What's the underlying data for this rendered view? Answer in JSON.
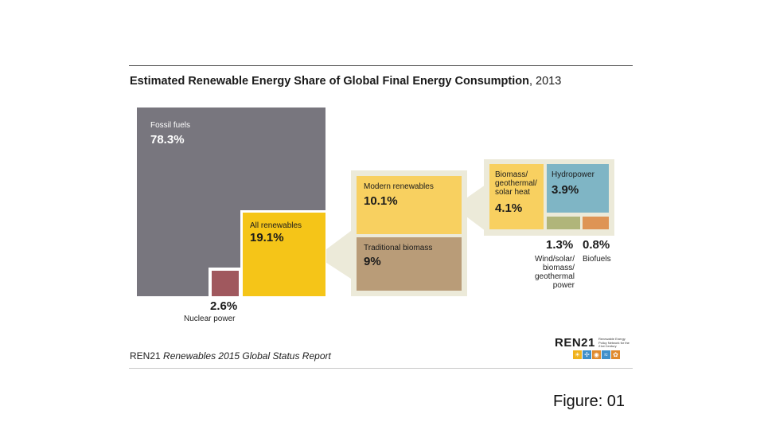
{
  "title": {
    "main": "Estimated Renewable Energy Share of Global Final Energy Consumption",
    "year": ", 2013"
  },
  "chart_data": {
    "type": "treemap",
    "title": "Estimated Renewable Energy Share of Global Final Energy Consumption, 2013",
    "unit": "%",
    "items": [
      {
        "name": "Fossil fuels",
        "value": 78.3,
        "label": "78.3%",
        "color": "#78767e"
      },
      {
        "name": "Nuclear power",
        "value": 2.6,
        "label": "2.6%",
        "color": "#a0585e"
      },
      {
        "name": "All renewables",
        "value": 19.1,
        "label": "19.1%",
        "color": "#f5c518"
      },
      {
        "name": "Modern renewables",
        "value": 10.1,
        "label": "10.1%",
        "color": "#f8d060",
        "parent": "All renewables"
      },
      {
        "name": "Traditional biomass",
        "value": 9,
        "label": "9%",
        "color": "#b99c78",
        "parent": "All renewables"
      },
      {
        "name": "Biomass/ geothermal/ solar heat",
        "value": 4.1,
        "label": "4.1%",
        "color": "#f8d060",
        "parent": "Modern renewables"
      },
      {
        "name": "Hydropower",
        "value": 3.9,
        "label": "3.9%",
        "color": "#7fb5c5",
        "parent": "Modern renewables"
      },
      {
        "name": "Wind/solar/ biomass/ geothermal power",
        "value": 1.3,
        "label": "1.3%",
        "color": "#b0b57a",
        "parent": "Modern renewables"
      },
      {
        "name": "Biofuels",
        "value": 0.8,
        "label": "0.8%",
        "color": "#de9455",
        "parent": "Modern renewables"
      }
    ]
  },
  "captions": {
    "nuclear": "Nuclear power",
    "wind_l1": "Wind/solar/",
    "wind_l2": "biomass/",
    "wind_l3": "geothermal",
    "wind_l4": "power",
    "biofuels": "Biofuels",
    "biomass_l1": "Biomass/",
    "biomass_l2": "geothermal/",
    "biomass_l3": "solar heat"
  },
  "source": {
    "org": "REN21",
    "report": "Renewables 2015 Global Status Report"
  },
  "logo": {
    "name_a": "REN",
    "name_b": "21",
    "tagline": "Renewable Energy Policy Network for the 21st Century"
  },
  "figure_label": "Figure: 01",
  "colors": {
    "panel_bg": "#ecead9",
    "connector": "#ecead9"
  }
}
